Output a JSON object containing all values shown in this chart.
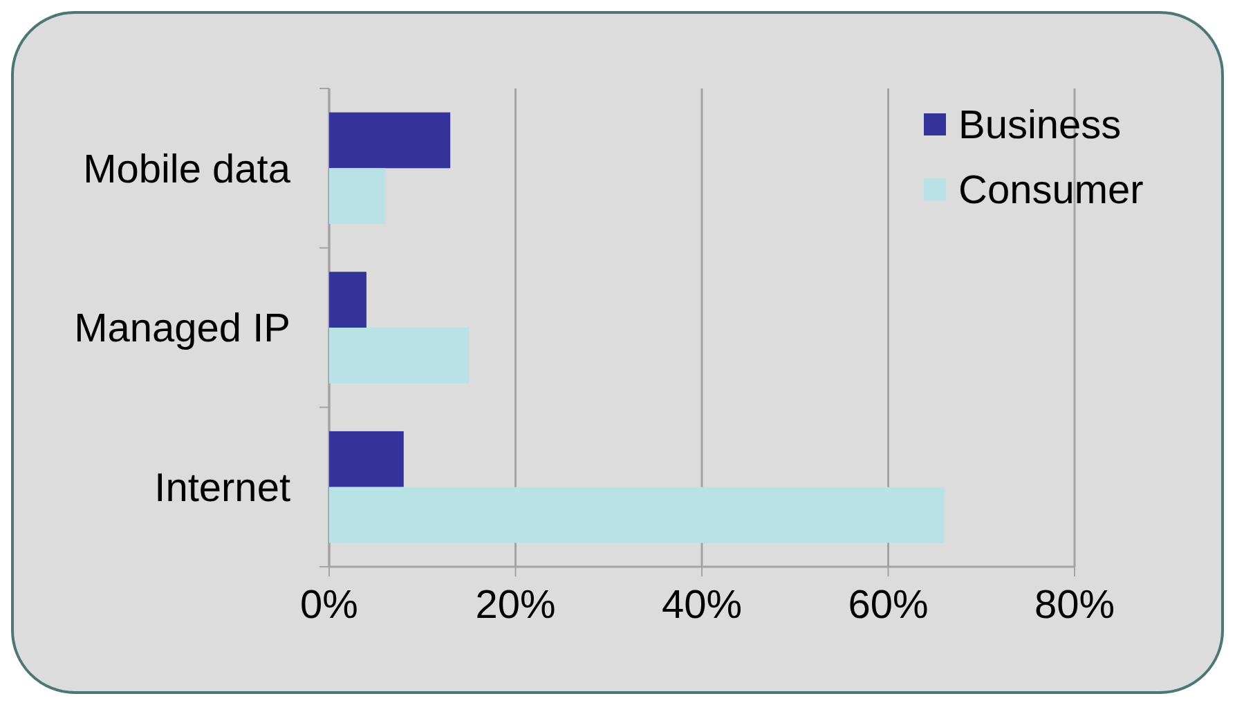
{
  "chart_data": {
    "type": "bar",
    "orientation": "horizontal",
    "categories": [
      "Mobile data",
      "Managed IP",
      "Internet"
    ],
    "series": [
      {
        "name": "Business",
        "color": "#333399",
        "values": [
          13,
          4,
          8
        ]
      },
      {
        "name": "Consumer",
        "color": "#b8e2e6",
        "values": [
          6,
          15,
          66
        ]
      }
    ],
    "xlim": [
      0,
      80
    ],
    "xticks": [
      {
        "value": 0,
        "label": "0%"
      },
      {
        "value": 20,
        "label": "20%"
      },
      {
        "value": 40,
        "label": "40%"
      },
      {
        "value": 60,
        "label": "60%"
      },
      {
        "value": 80,
        "label": "80%"
      }
    ],
    "grid": "x",
    "legend": "top right"
  }
}
